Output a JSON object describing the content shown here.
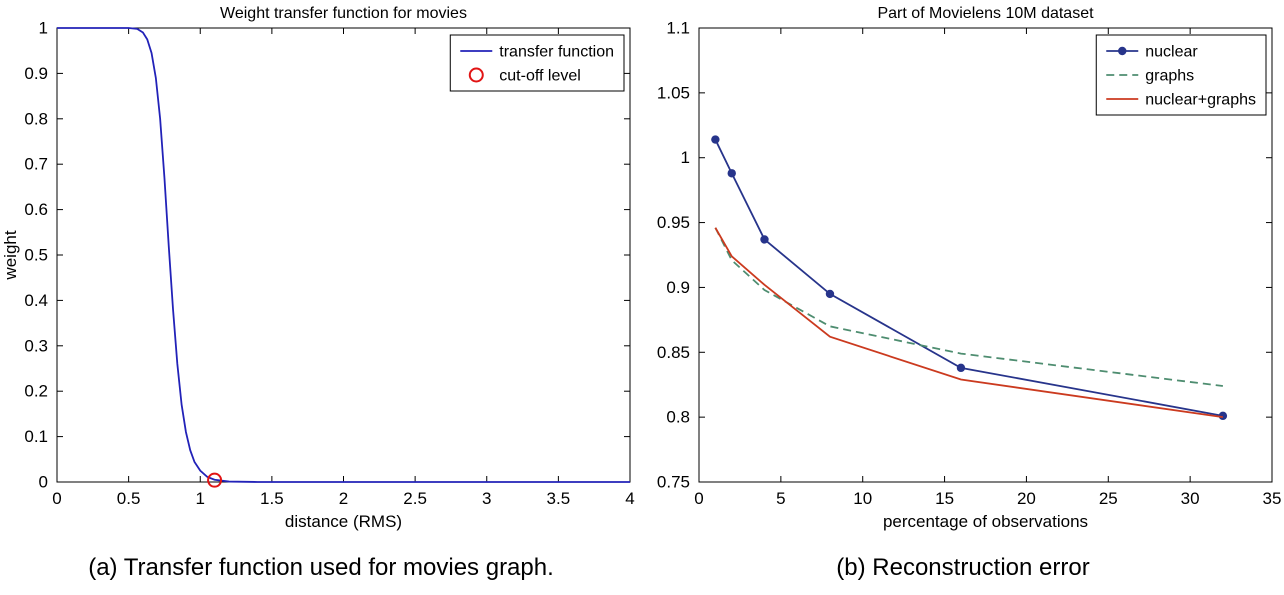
{
  "figure": {
    "caption_left": "(a) Transfer function used for movies graph.",
    "caption_right": "(b) Reconstruction error"
  },
  "chart_data": [
    {
      "type": "line",
      "title": "Weight transfer function for movies",
      "xlabel": "distance (RMS)",
      "ylabel": "weight",
      "xlim": [
        0,
        4
      ],
      "ylim": [
        0,
        1
      ],
      "xticks": [
        0,
        0.5,
        1,
        1.5,
        2,
        2.5,
        3,
        3.5,
        4
      ],
      "yticks": [
        0,
        0.1,
        0.2,
        0.3,
        0.4,
        0.5,
        0.6,
        0.7,
        0.8,
        0.9,
        1
      ],
      "grid": false,
      "legend_position": "top-right",
      "series": [
        {
          "name": "transfer function",
          "color": "#2222b8",
          "style": "solid",
          "marker": "none",
          "x": [
            0,
            0.3,
            0.5,
            0.56,
            0.6,
            0.63,
            0.66,
            0.69,
            0.72,
            0.75,
            0.78,
            0.81,
            0.84,
            0.87,
            0.9,
            0.93,
            0.96,
            1.0,
            1.05,
            1.1,
            1.2,
            1.4,
            1.8,
            2.5,
            3.2,
            4.0
          ],
          "y": [
            1,
            1,
            1,
            0.998,
            0.99,
            0.975,
            0.945,
            0.89,
            0.8,
            0.67,
            0.52,
            0.38,
            0.26,
            0.17,
            0.11,
            0.07,
            0.044,
            0.025,
            0.011,
            0.005,
            0.001,
            0,
            0,
            0,
            0,
            0
          ]
        },
        {
          "name": "cut-off level",
          "color": "#e11414",
          "style": "none",
          "marker": "circle-open",
          "x": [
            1.1
          ],
          "y": [
            0.004
          ]
        }
      ]
    },
    {
      "type": "line",
      "title": "Part of Movielens 10M dataset",
      "xlabel": "percentage of observations",
      "ylabel": "",
      "xlim": [
        0,
        35
      ],
      "ylim": [
        0.75,
        1.1
      ],
      "xticks": [
        0,
        5,
        10,
        15,
        20,
        25,
        30,
        35
      ],
      "yticks": [
        0.75,
        0.8,
        0.85,
        0.9,
        0.95,
        1,
        1.05,
        1.1
      ],
      "grid": false,
      "legend_position": "top-right",
      "series": [
        {
          "name": "nuclear",
          "color": "#27348b",
          "style": "solid",
          "marker": "dot",
          "x": [
            1,
            2,
            4,
            8,
            16,
            32
          ],
          "y": [
            1.014,
            0.988,
            0.937,
            0.895,
            0.838,
            0.801
          ]
        },
        {
          "name": "graphs",
          "color": "#4e8d70",
          "style": "dashed",
          "marker": "none",
          "x": [
            1,
            2,
            4,
            8,
            16,
            32
          ],
          "y": [
            0.946,
            0.921,
            0.898,
            0.87,
            0.849,
            0.824
          ]
        },
        {
          "name": "nuclear+graphs",
          "color": "#cb3a1f",
          "style": "solid",
          "marker": "none",
          "x": [
            1,
            2,
            4,
            8,
            16,
            32
          ],
          "y": [
            0.946,
            0.924,
            0.902,
            0.862,
            0.829,
            0.8
          ]
        }
      ]
    }
  ]
}
